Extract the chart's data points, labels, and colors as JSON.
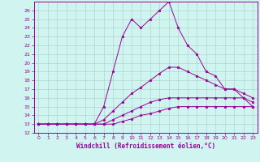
{
  "xlabel": "Windchill (Refroidissement éolien,°C)",
  "background_color": "#d0f5f0",
  "line_color": "#990099",
  "grid_color": "#aacccc",
  "x_values": [
    0,
    1,
    2,
    3,
    4,
    5,
    6,
    7,
    8,
    9,
    10,
    11,
    12,
    13,
    14,
    15,
    16,
    17,
    18,
    19,
    20,
    21,
    22,
    23
  ],
  "series": [
    [
      13,
      13,
      13,
      13,
      13,
      13,
      13,
      15,
      19,
      23,
      25,
      24,
      25,
      26,
      27,
      24,
      22,
      21,
      19,
      18.5,
      17,
      17,
      16,
      15
    ],
    [
      13,
      13,
      13,
      13,
      13,
      13,
      13,
      13.5,
      14.5,
      15.5,
      16.5,
      17.2,
      18,
      18.8,
      19.5,
      19.5,
      19,
      18.5,
      18,
      17.5,
      17,
      17,
      16.5,
      16
    ],
    [
      13,
      13,
      13,
      13,
      13,
      13,
      13,
      13,
      13.5,
      14,
      14.5,
      15,
      15.5,
      15.8,
      16,
      16,
      16,
      16,
      16,
      16,
      16,
      16,
      16,
      15.5
    ],
    [
      13,
      13,
      13,
      13,
      13,
      13,
      13,
      13,
      13,
      13.3,
      13.6,
      14,
      14.2,
      14.5,
      14.8,
      15,
      15,
      15,
      15,
      15,
      15,
      15,
      15,
      15
    ]
  ],
  "ylim": [
    12,
    27
  ],
  "xlim": [
    -0.5,
    23.5
  ],
  "yticks": [
    12,
    13,
    14,
    15,
    16,
    17,
    18,
    19,
    20,
    21,
    22,
    23,
    24,
    25,
    26
  ],
  "xticks": [
    0,
    1,
    2,
    3,
    4,
    5,
    6,
    7,
    8,
    9,
    10,
    11,
    12,
    13,
    14,
    15,
    16,
    17,
    18,
    19,
    20,
    21,
    22,
    23
  ]
}
